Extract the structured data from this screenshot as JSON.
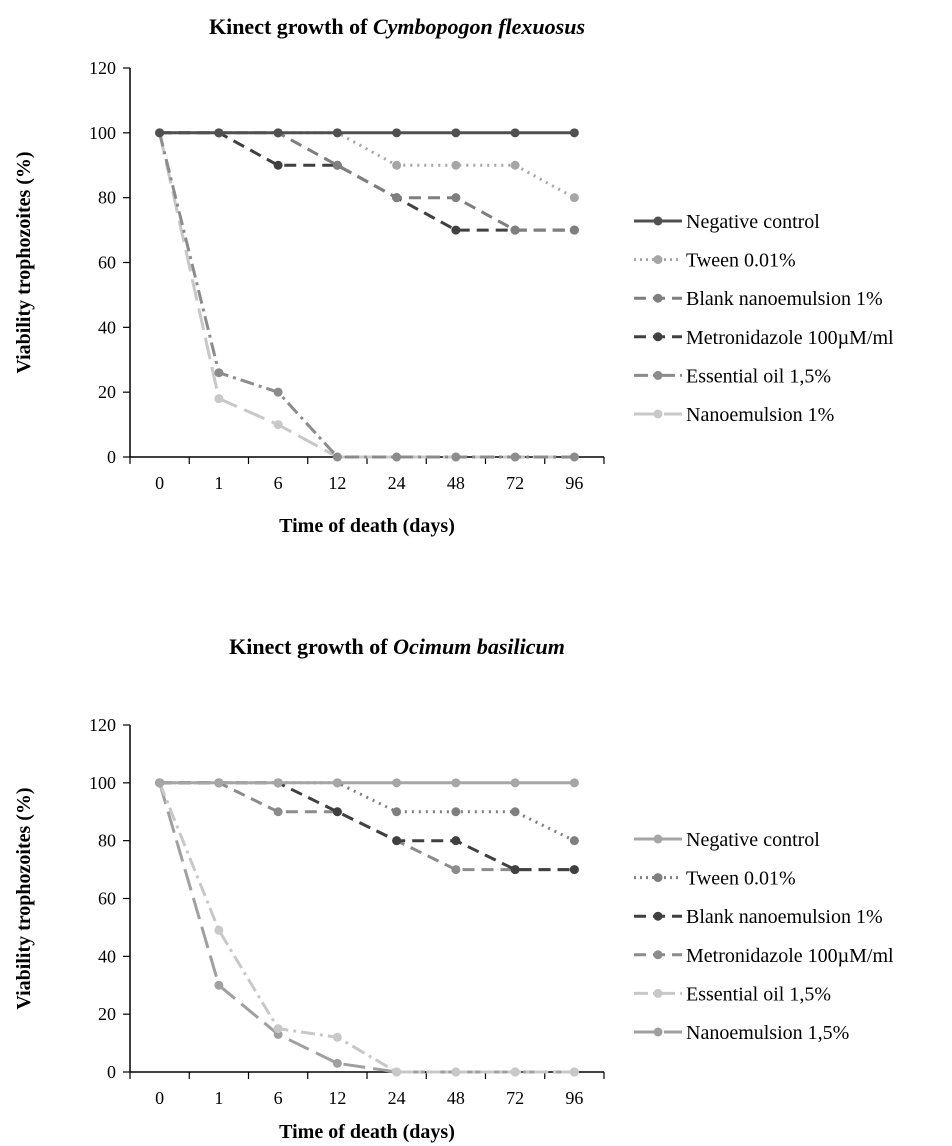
{
  "chart_data": [
    {
      "type": "line",
      "title": {
        "prefix": "Kinect growth of ",
        "species": "Cymbopogon flexuosus"
      },
      "xlabel": "Time of death (days)",
      "ylabel": "Viability trophozoites (%)",
      "categories": [
        "0",
        "1",
        "6",
        "12",
        "24",
        "48",
        "72",
        "96"
      ],
      "ylim": [
        0,
        120
      ],
      "yticks": [
        0,
        20,
        40,
        60,
        80,
        100,
        120
      ],
      "grid": false,
      "legend_position": "right",
      "series": [
        {
          "name": "Negative control",
          "values": [
            100,
            100,
            100,
            100,
            100,
            100,
            100,
            100
          ],
          "color": "#505050",
          "dash": "solid"
        },
        {
          "name": "Tween 0.01%",
          "values": [
            100,
            100,
            100,
            100,
            90,
            90,
            90,
            80
          ],
          "color": "#a6a6a6",
          "dash": "dot"
        },
        {
          "name": "Blank nanoemulsion 1%",
          "values": [
            100,
            100,
            100,
            90,
            80,
            80,
            70,
            70
          ],
          "color": "#7f7f7f",
          "dash": "dash"
        },
        {
          "name": "Metronidazole 100µM/ml",
          "values": [
            100,
            100,
            90,
            90,
            80,
            70,
            70,
            70
          ],
          "color": "#404040",
          "dash": "dash"
        },
        {
          "name": "Essential oil 1,5%",
          "values": [
            100,
            26,
            20,
            0,
            0,
            0,
            0,
            0
          ],
          "color": "#8c8c8c",
          "dash": "dashdot"
        },
        {
          "name": "Nanoemulsion 1%",
          "values": [
            100,
            18,
            10,
            0,
            0,
            0,
            0,
            0
          ],
          "color": "#c8c8c8",
          "dash": "longdash"
        }
      ]
    },
    {
      "type": "line",
      "title": {
        "prefix": "Kinect growth of ",
        "species": "Ocimum basilicum"
      },
      "xlabel": "Time of death (days)",
      "ylabel": "Viability trophozoites (%)",
      "categories": [
        "0",
        "1",
        "6",
        "12",
        "24",
        "48",
        "72",
        "96"
      ],
      "ylim": [
        0,
        120
      ],
      "yticks": [
        0,
        20,
        40,
        60,
        80,
        100,
        120
      ],
      "grid": false,
      "legend_position": "right",
      "series": [
        {
          "name": "Negative control",
          "values": [
            100,
            100,
            100,
            100,
            100,
            100,
            100,
            100
          ],
          "color": "#a6a6a6",
          "dash": "solid"
        },
        {
          "name": "Tween 0.01%",
          "values": [
            100,
            100,
            100,
            100,
            90,
            90,
            90,
            80
          ],
          "color": "#7f7f7f",
          "dash": "dot"
        },
        {
          "name": "Blank nanoemulsion 1%",
          "values": [
            100,
            100,
            100,
            90,
            80,
            80,
            70,
            70
          ],
          "color": "#404040",
          "dash": "dash"
        },
        {
          "name": "Metronidazole 100µM/ml",
          "values": [
            100,
            100,
            90,
            90,
            80,
            70,
            70,
            70
          ],
          "color": "#8c8c8c",
          "dash": "dash"
        },
        {
          "name": "Essential oil 1,5%",
          "values": [
            100,
            49,
            15,
            12,
            0,
            0,
            0,
            0
          ],
          "color": "#c8c8c8",
          "dash": "dashdot"
        },
        {
          "name": "Nanoemulsion 1,5%",
          "values": [
            100,
            30,
            13,
            3,
            0,
            0,
            0,
            0
          ],
          "color": "#a0a0a0",
          "dash": "longdash"
        }
      ]
    }
  ]
}
